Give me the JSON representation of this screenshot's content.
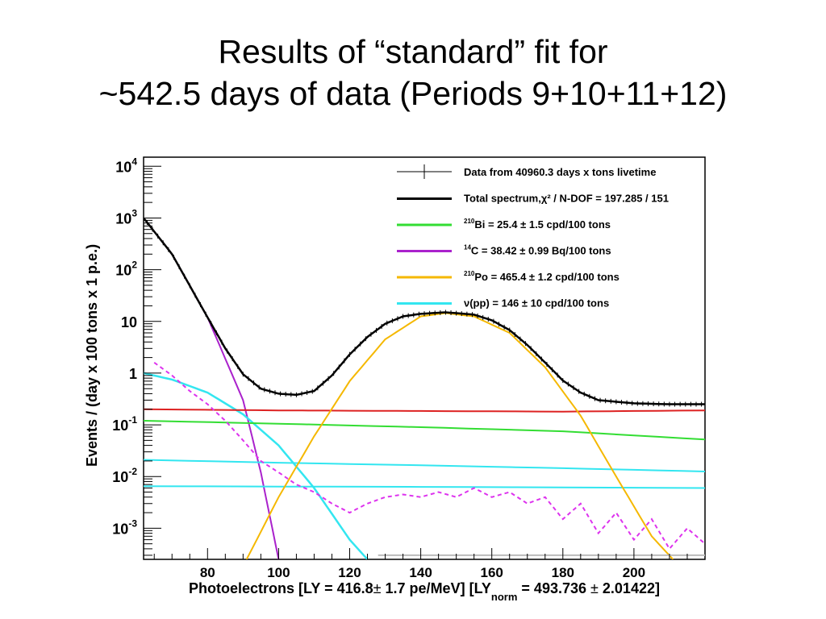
{
  "slide": {
    "title_line1": "Results of “standard” fit for",
    "title_line2": "~542.5 days of data (Periods 9+10+11+12)"
  },
  "chart_data": {
    "type": "line",
    "y_scale": "log",
    "xlim": [
      62,
      220
    ],
    "ylim": [
      0.00025,
      15000
    ],
    "grid": false,
    "legend_placement": "top-right",
    "xlabel_parts": [
      "Photoelectrons [LY = 416.8",
      "±",
      " 1.7 pe/MeV] [LY",
      "norm",
      " = 493.736 ",
      "±",
      " 2.01422]"
    ],
    "ylabel": "Events / (day x 100 tons x 1 p.e.)",
    "x_ticks": [
      80,
      100,
      120,
      140,
      160,
      180,
      200
    ],
    "x_tick_labels": [
      "80",
      "100",
      "120",
      "140",
      "160",
      "180",
      "200"
    ],
    "y_ticks": [
      {
        "value": 10000,
        "base": "10",
        "exp": "4"
      },
      {
        "value": 1000,
        "base": "10",
        "exp": "3"
      },
      {
        "value": 100,
        "base": "10",
        "exp": "2"
      },
      {
        "value": 10,
        "base": "10",
        "exp": ""
      },
      {
        "value": 1,
        "base": "1",
        "exp": ""
      },
      {
        "value": 0.1,
        "base": "10",
        "exp": "-1"
      },
      {
        "value": 0.01,
        "base": "10",
        "exp": "-2"
      },
      {
        "value": 0.001,
        "base": "10",
        "exp": "-3"
      }
    ],
    "legend": [
      {
        "sup": "",
        "text": "Data from 40960.3 days x tons livetime",
        "color": "#000000",
        "style": "marker"
      },
      {
        "sup": "",
        "text": "Total spectrum,χ² / N-DOF = 197.285 / 151",
        "color": "#000000",
        "style": "line"
      },
      {
        "sup": "210",
        "text": "Bi = 25.4 ± 1.5 cpd/100 tons",
        "color": "#33dd33",
        "style": "line"
      },
      {
        "sup": "14",
        "text": "C = 38.42 ± 0.99 Bq/100 tons",
        "color": "#aa22cc",
        "style": "line"
      },
      {
        "sup": "210",
        "text": "Po = 465.4 ± 1.2 cpd/100 tons",
        "color": "#f5b800",
        "style": "line"
      },
      {
        "sup": "",
        "text": "ν(pp) = 146 ± 10 cpd/100 tons",
        "color": "#33e6f0",
        "style": "line"
      }
    ],
    "series": [
      {
        "key": "c14",
        "color": "#aa22cc",
        "width": 2,
        "dash": false,
        "x": [
          62,
          70,
          80,
          90,
          95,
          100
        ],
        "y": [
          1000,
          200,
          12,
          0.3,
          0.012,
          0.00025
        ]
      },
      {
        "key": "nupp_peak",
        "color": "#33e6f0",
        "width": 2.5,
        "dash": false,
        "x": [
          62,
          70,
          80,
          90,
          100,
          110,
          120,
          125
        ],
        "y": [
          1.0,
          0.75,
          0.42,
          0.16,
          0.04,
          0.006,
          0.0006,
          0.00025
        ]
      },
      {
        "key": "bkg_red",
        "color": "#dd2222",
        "width": 2,
        "dash": false,
        "x": [
          62,
          100,
          140,
          180,
          220
        ],
        "y": [
          0.2,
          0.19,
          0.185,
          0.18,
          0.19
        ]
      },
      {
        "key": "bi210",
        "color": "#33dd33",
        "width": 2,
        "dash": false,
        "x": [
          62,
          100,
          140,
          180,
          220
        ],
        "y": [
          0.12,
          0.105,
          0.09,
          0.075,
          0.052
        ]
      },
      {
        "key": "nupp_flat1",
        "color": "#33e6f0",
        "width": 2,
        "dash": false,
        "x": [
          62,
          100,
          140,
          180,
          220
        ],
        "y": [
          0.021,
          0.0185,
          0.0165,
          0.0145,
          0.0125
        ]
      },
      {
        "key": "nupp_flat2",
        "color": "#33e6f0",
        "width": 2,
        "dash": false,
        "x": [
          62,
          140,
          220
        ],
        "y": [
          0.0065,
          0.0063,
          0.006
        ]
      },
      {
        "key": "po210",
        "color": "#f5b800",
        "width": 2,
        "dash": false,
        "x": [
          91,
          100,
          110,
          120,
          130,
          140,
          147,
          155,
          165,
          175,
          185,
          195,
          205,
          211
        ],
        "y": [
          0.00025,
          0.004,
          0.06,
          0.7,
          4.5,
          12.5,
          14.5,
          12.5,
          6.0,
          1.3,
          0.15,
          0.01,
          0.0007,
          0.00025
        ]
      },
      {
        "key": "pileup_dashed",
        "color": "#dd33ee",
        "width": 2,
        "dash": true,
        "x": [
          65,
          70,
          75,
          80,
          85,
          90,
          95,
          100,
          105,
          110,
          115,
          120,
          125,
          130,
          135,
          140,
          145,
          150,
          155,
          160,
          165,
          170,
          175,
          180,
          185,
          190,
          195,
          200,
          205,
          210,
          215,
          220
        ],
        "y": [
          1.6,
          0.9,
          0.45,
          0.25,
          0.12,
          0.05,
          0.02,
          0.012,
          0.007,
          0.005,
          0.003,
          0.002,
          0.003,
          0.004,
          0.0045,
          0.004,
          0.005,
          0.004,
          0.006,
          0.004,
          0.005,
          0.003,
          0.004,
          0.0015,
          0.003,
          0.0008,
          0.002,
          0.0006,
          0.0015,
          0.0004,
          0.001,
          0.0005
        ]
      },
      {
        "key": "gray_tail",
        "color": "#bbbbbb",
        "width": 2,
        "dash": false,
        "x": [
          128,
          220
        ],
        "y": [
          0.0003,
          0.0003
        ]
      },
      {
        "key": "total",
        "color": "#000000",
        "width": 2.5,
        "dash": false,
        "x": [
          62,
          70,
          80,
          85,
          90,
          95,
          100,
          105,
          110,
          115,
          120,
          125,
          130,
          135,
          140,
          147,
          155,
          160,
          165,
          170,
          175,
          180,
          185,
          190,
          200,
          210,
          220
        ],
        "y": [
          1000,
          200,
          12,
          3.0,
          0.95,
          0.5,
          0.4,
          0.38,
          0.45,
          0.9,
          2.3,
          5.0,
          9.0,
          12.5,
          14.0,
          15.0,
          13.5,
          10.5,
          6.8,
          3.5,
          1.6,
          0.72,
          0.42,
          0.3,
          0.26,
          0.25,
          0.25
        ]
      }
    ]
  }
}
